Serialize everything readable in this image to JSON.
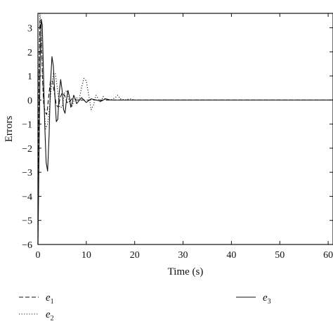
{
  "chart_data": {
    "type": "line",
    "title": "",
    "xlabel": "Time (s)",
    "ylabel": "Errors",
    "xlim": [
      0,
      61
    ],
    "ylim": [
      -6,
      3.6
    ],
    "grid": false,
    "legend_position": "bottom",
    "xticks": [
      0,
      10,
      20,
      30,
      40,
      50,
      60
    ],
    "yticks": [
      3,
      2,
      1,
      0,
      -1,
      -2,
      -3,
      -4,
      -5,
      -6
    ],
    "series": [
      {
        "name": "e1",
        "name_base": "e",
        "name_sub": "1",
        "line_style": "dashed",
        "color": "#111111",
        "x": [
          0,
          0.2,
          0.4,
          0.6,
          0.8,
          1.0,
          1.2,
          1.5,
          1.8,
          2.0,
          2.3,
          2.6,
          3.0,
          3.4,
          3.8,
          4.2,
          4.6,
          5.0,
          5.5,
          6.0,
          6.5,
          7.0,
          7.5,
          8.0,
          9.0,
          10.0,
          11.0,
          12.0,
          13.0,
          14.0,
          15.0,
          16.0,
          17.0,
          18.0,
          20.0,
          25.0,
          61.0
        ],
        "values": [
          -6.0,
          0.5,
          3.3,
          2.9,
          1.8,
          0.6,
          -0.2,
          -0.5,
          -0.6,
          -0.3,
          0.3,
          0.8,
          0.8,
          0.3,
          -0.2,
          -0.3,
          0.1,
          0.3,
          0.2,
          -0.1,
          -0.1,
          0.05,
          0.05,
          0.0,
          0.0,
          0.0,
          0.0,
          0.0,
          0.0,
          0.0,
          0.0,
          0.0,
          0.0,
          0.0,
          0.0,
          0.0,
          0.0
        ]
      },
      {
        "name": "e2",
        "name_base": "e",
        "name_sub": "2",
        "line_style": "dotted",
        "color": "#111111",
        "x": [
          0,
          0.2,
          0.4,
          0.6,
          0.8,
          1.0,
          1.3,
          1.6,
          2.0,
          2.4,
          2.8,
          3.2,
          3.6,
          4.0,
          4.5,
          5.0,
          5.5,
          6.0,
          6.5,
          7.0,
          7.5,
          8.0,
          8.5,
          9.0,
          9.5,
          10.0,
          10.5,
          11.0,
          11.5,
          12.0,
          12.5,
          13.0,
          13.5,
          14.0,
          15.0,
          16.0,
          16.5,
          17.0,
          18.0,
          19.0,
          20.0,
          25.0,
          61.0
        ],
        "values": [
          -6.0,
          1.0,
          3.6,
          3.2,
          2.0,
          0.6,
          -0.4,
          -1.2,
          -1.0,
          -0.3,
          0.6,
          1.1,
          1.1,
          0.5,
          -0.3,
          -0.3,
          0.3,
          0.4,
          -0.1,
          -0.3,
          0.0,
          0.1,
          0.0,
          0.5,
          0.9,
          0.8,
          0.2,
          -0.4,
          -0.2,
          0.2,
          0.05,
          -0.1,
          0.15,
          0.0,
          0.0,
          0.1,
          0.2,
          0.05,
          0.0,
          0.05,
          0.0,
          0.0,
          0.0
        ]
      },
      {
        "name": "e3",
        "name_base": "e",
        "name_sub": "3",
        "line_style": "solid",
        "color": "#111111",
        "x": [
          0,
          0.1,
          0.3,
          0.5,
          0.7,
          0.9,
          1.1,
          1.4,
          1.7,
          2.0,
          2.3,
          2.6,
          2.9,
          3.2,
          3.5,
          3.8,
          4.1,
          4.4,
          4.7,
          5.0,
          5.3,
          5.6,
          5.9,
          6.2,
          6.5,
          6.8,
          7.1,
          7.4,
          7.7,
          8.0,
          9.0,
          10.0,
          11.0,
          12.0,
          13.0,
          14.0,
          15.0,
          16.0,
          17.0,
          18.0,
          20.0,
          25.0,
          61.0
        ],
        "values": [
          -6.0,
          -4.5,
          -1.0,
          2.0,
          3.35,
          3.1,
          1.5,
          -1.0,
          -2.6,
          -2.95,
          -1.5,
          0.7,
          1.8,
          1.4,
          0.2,
          -0.9,
          -0.8,
          0.3,
          0.85,
          0.4,
          -0.4,
          -0.55,
          0.0,
          0.4,
          0.15,
          -0.3,
          -0.1,
          0.2,
          0.05,
          -0.15,
          0.1,
          -0.1,
          0.05,
          0.0,
          -0.05,
          0.05,
          0.0,
          0.0,
          0.0,
          0.0,
          0.0,
          0.0,
          0.0
        ]
      }
    ]
  }
}
